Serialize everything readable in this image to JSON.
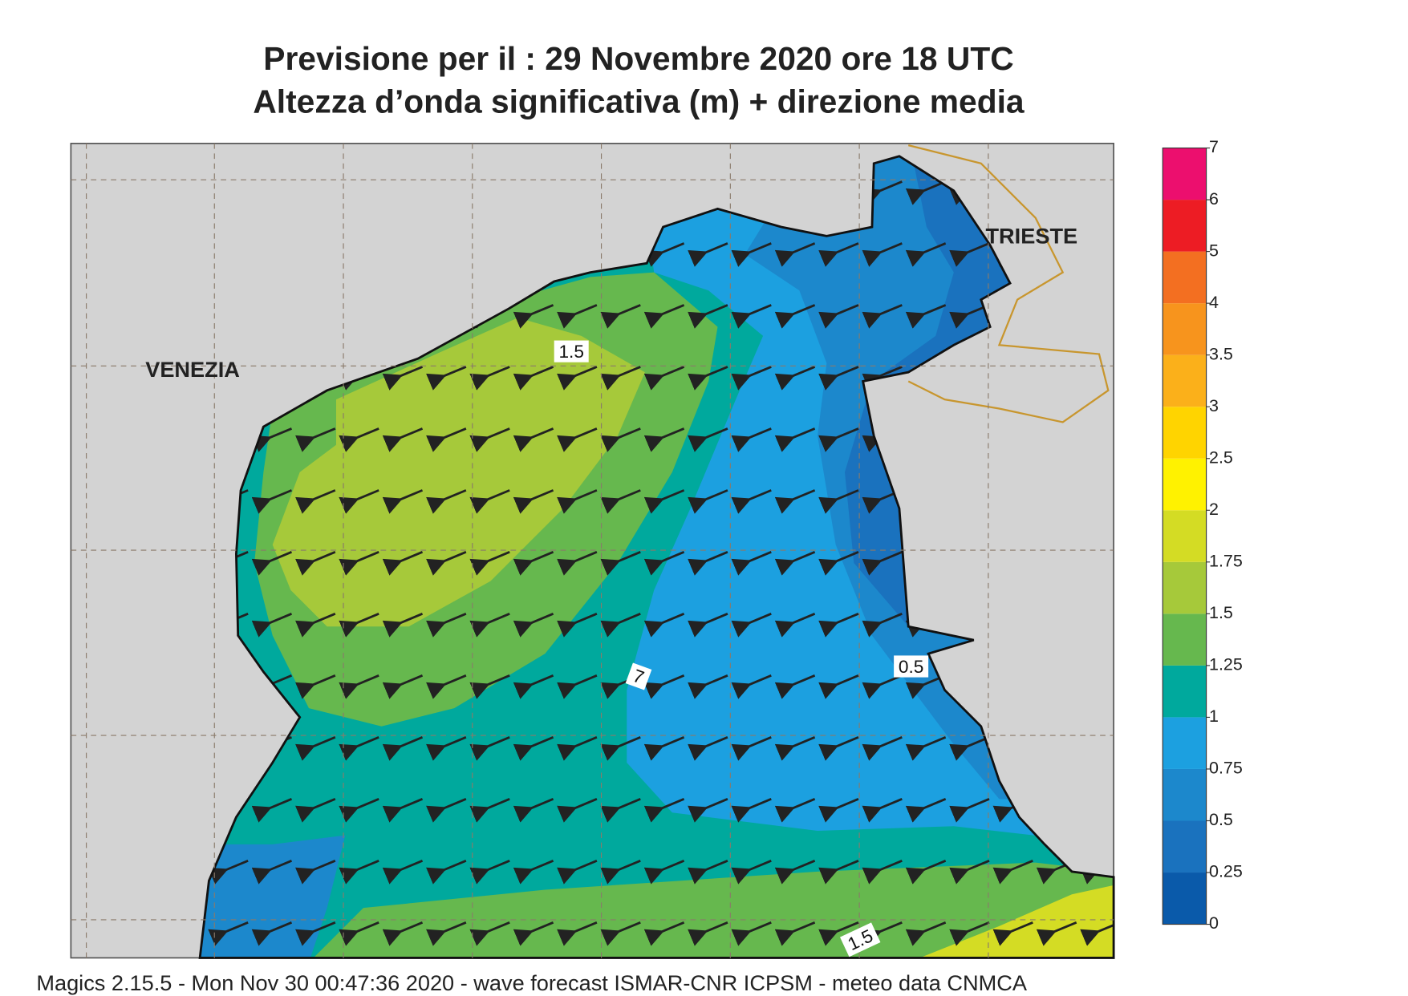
{
  "title": [
    "Previsione per il  :  29 Novembre  2020   ore 18 UTC",
    "Altezza d’onda significativa (m) + direzione media"
  ],
  "map": {
    "place_labels": [
      "VENEZIA",
      "TRIESTE"
    ],
    "contour_labels": [
      "1.5",
      "0.5",
      "7",
      "1.5"
    ]
  },
  "colorbar": {
    "ticks": [
      0,
      0.25,
      0.5,
      0.75,
      1,
      1.25,
      1.5,
      1.75,
      2,
      2.5,
      3,
      3.5,
      4,
      5,
      6,
      7
    ],
    "colors": [
      "#0a5aaa",
      "#1a72be",
      "#1c88cc",
      "#1ca0e0",
      "#00a99d",
      "#66b84e",
      "#a6c93a",
      "#d4dc24",
      "#fff200",
      "#ffd400",
      "#fbb01a",
      "#f7941d",
      "#f36f21",
      "#ed1c24",
      "#ec0f6e"
    ]
  },
  "footer": "Magics 2.15.5 - Mon Nov 30 00:47:36 2020 - wave forecast  ISMAR-CNR  ICPSM - meteo data   CNMCA"
}
